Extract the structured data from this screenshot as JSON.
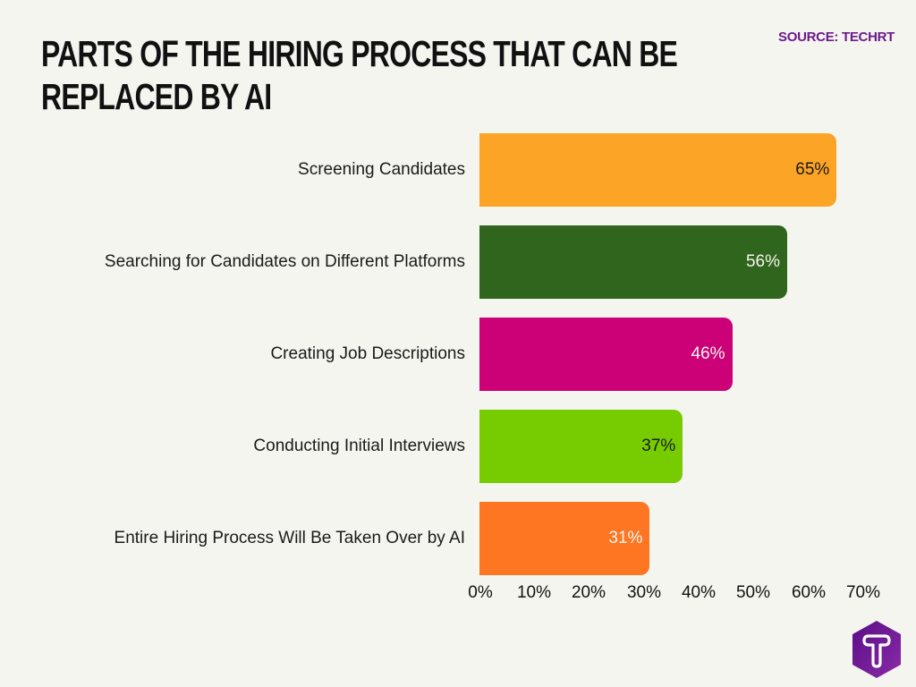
{
  "header": {
    "title_line1": "PARTS OF THE HIRING PROCESS THAT CAN BE",
    "title_line2": "REPLACED BY AI",
    "source": "SOURCE: TECHRT"
  },
  "rows": [
    {
      "label": "Screening Candidates",
      "value": 65,
      "value_label": "65%",
      "color": "#fca425",
      "text_color": "#1a1a1a"
    },
    {
      "label": "Searching for Candidates on Different Platforms",
      "value": 56,
      "value_label": "56%",
      "color": "#2f651c",
      "text_color": "#f5f5f0"
    },
    {
      "label": "Creating Job Descriptions",
      "value": 46,
      "value_label": "46%",
      "color": "#cc0077",
      "text_color": "#f5f5f0"
    },
    {
      "label": "Conducting Initial Interviews",
      "value": 37,
      "value_label": "37%",
      "color": "#76cc00",
      "text_color": "#1a1a1a"
    },
    {
      "label": "Entire Hiring Process Will Be Taken Over by AI",
      "value": 31,
      "value_label": "31%",
      "color": "#fe7622",
      "text_color": "#f5f5f0"
    }
  ],
  "axis": {
    "ticks": [
      "0%",
      "10%",
      "20%",
      "30%",
      "40%",
      "50%",
      "60%",
      "70%"
    ]
  },
  "logo": {
    "icon": "techrt-logo-icon",
    "color": "#6a1b8a"
  },
  "chart_data": {
    "type": "bar",
    "orientation": "horizontal",
    "title": "Parts of the Hiring Process That Can Be Replaced by AI",
    "subtitle": "Source: TechRT",
    "categories": [
      "Screening Candidates",
      "Searching for Candidates on Different Platforms",
      "Creating Job Descriptions",
      "Conducting Initial Interviews",
      "Entire Hiring Process Will Be Taken Over by AI"
    ],
    "values": [
      65,
      56,
      46,
      37,
      31
    ],
    "data_labels": [
      "65%",
      "56%",
      "46%",
      "37%",
      "31%"
    ],
    "colors": [
      "#fca425",
      "#2f651c",
      "#cc0077",
      "#76cc00",
      "#fe7622"
    ],
    "xlabel": "",
    "ylabel": "",
    "xlim": [
      0,
      70
    ],
    "x_ticks": [
      "0%",
      "10%",
      "20%",
      "30%",
      "40%",
      "50%",
      "60%",
      "70%"
    ],
    "grid": false,
    "legend": "none"
  }
}
